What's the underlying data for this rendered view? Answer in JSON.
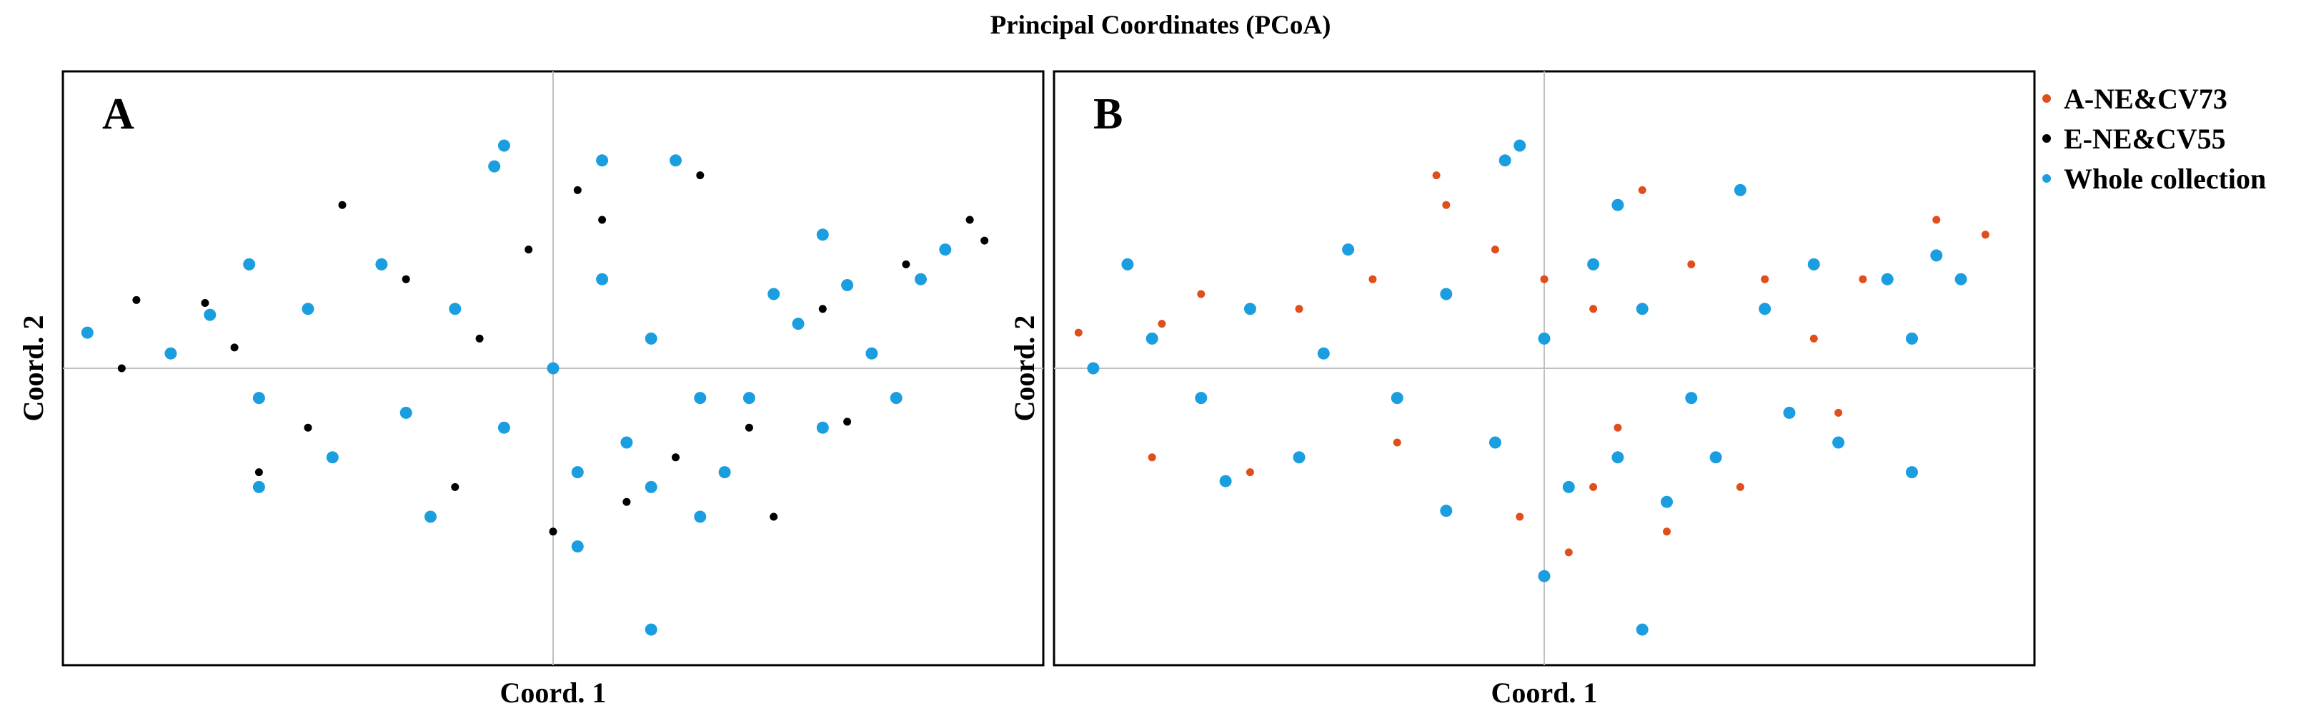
{
  "title": "Principal Coordinates (PCoA)",
  "colors": {
    "whole": "#1a9ee0",
    "e_group": "#000000",
    "a_group": "#e04e1b",
    "axis": "#c0c0c0",
    "frame": "#000000"
  },
  "legend": {
    "position": "top-right",
    "entries": [
      {
        "label": "A-NE&CV73",
        "color": "#e04e1b"
      },
      {
        "label": "E-NE&CV55",
        "color": "#000000"
      },
      {
        "label": "Whole collection",
        "color": "#1a9ee0"
      }
    ]
  },
  "chart_data": [
    {
      "type": "scatter",
      "panel_label": "A",
      "xlabel": "Coord. 1",
      "ylabel": "Coord. 2",
      "xlim": [
        -1,
        1
      ],
      "ylim": [
        -1,
        1
      ],
      "grid": false,
      "zero_lines": true,
      "series": [
        {
          "name": "E-NE&CV55",
          "color": "#000000",
          "size": "small",
          "points": [
            [
              -0.71,
              0.22
            ],
            [
              -0.65,
              0.07
            ],
            [
              -0.85,
              0.23
            ],
            [
              -0.43,
              0.55
            ],
            [
              -0.3,
              0.3
            ],
            [
              -0.15,
              0.1
            ],
            [
              -0.05,
              0.4
            ],
            [
              0.05,
              0.6
            ],
            [
              0.1,
              0.5
            ],
            [
              0.25,
              -0.3
            ],
            [
              0.4,
              -0.2
            ],
            [
              0.55,
              0.2
            ],
            [
              -0.6,
              -0.35
            ],
            [
              -0.2,
              -0.4
            ],
            [
              0.0,
              -0.55
            ],
            [
              0.15,
              -0.45
            ],
            [
              0.85,
              0.5
            ],
            [
              0.88,
              0.43
            ],
            [
              0.72,
              0.35
            ],
            [
              -0.88,
              0.0
            ],
            [
              0.6,
              -0.18
            ],
            [
              -0.5,
              -0.2
            ],
            [
              0.3,
              0.65
            ],
            [
              0.45,
              -0.5
            ]
          ]
        },
        {
          "name": "Whole collection",
          "color": "#1a9ee0",
          "size": "large",
          "points": [
            [
              -0.78,
              0.05
            ],
            [
              -0.7,
              0.18
            ],
            [
              -0.5,
              0.2
            ],
            [
              -0.35,
              0.35
            ],
            [
              -0.2,
              0.2
            ],
            [
              0.0,
              0.0
            ],
            [
              0.1,
              0.3
            ],
            [
              0.2,
              0.1
            ],
            [
              0.3,
              -0.1
            ],
            [
              0.45,
              0.25
            ],
            [
              0.5,
              0.15
            ],
            [
              0.6,
              0.28
            ],
            [
              0.65,
              0.05
            ],
            [
              0.75,
              0.3
            ],
            [
              -0.6,
              -0.1
            ],
            [
              -0.45,
              -0.3
            ],
            [
              -0.3,
              -0.15
            ],
            [
              -0.1,
              -0.2
            ],
            [
              0.05,
              -0.35
            ],
            [
              0.15,
              -0.25
            ],
            [
              0.2,
              -0.4
            ],
            [
              0.35,
              -0.35
            ],
            [
              0.4,
              -0.1
            ],
            [
              0.55,
              -0.2
            ],
            [
              -0.6,
              -0.4
            ],
            [
              -0.25,
              -0.5
            ],
            [
              0.05,
              -0.6
            ],
            [
              0.1,
              0.7
            ],
            [
              0.25,
              0.7
            ],
            [
              -0.1,
              0.75
            ],
            [
              -0.12,
              0.68
            ],
            [
              0.3,
              -0.5
            ],
            [
              0.2,
              -0.88
            ],
            [
              -0.62,
              0.35
            ],
            [
              0.55,
              0.45
            ],
            [
              0.8,
              0.4
            ],
            [
              -0.95,
              0.12
            ],
            [
              0.7,
              -0.1
            ]
          ]
        }
      ]
    },
    {
      "type": "scatter",
      "panel_label": "B",
      "xlabel": "Coord. 1",
      "ylabel": "Coord. 2",
      "xlim": [
        -1,
        1
      ],
      "ylim": [
        -1,
        1
      ],
      "grid": false,
      "zero_lines": true,
      "series": [
        {
          "name": "A-NE&CV73",
          "color": "#e04e1b",
          "size": "small",
          "points": [
            [
              -0.95,
              0.12
            ],
            [
              -0.78,
              0.15
            ],
            [
              -0.7,
              0.25
            ],
            [
              -0.5,
              0.2
            ],
            [
              -0.35,
              0.3
            ],
            [
              -0.2,
              0.55
            ],
            [
              -0.1,
              0.4
            ],
            [
              0.0,
              0.3
            ],
            [
              0.1,
              0.2
            ],
            [
              0.2,
              0.6
            ],
            [
              0.3,
              0.35
            ],
            [
              0.45,
              0.3
            ],
            [
              0.55,
              0.1
            ],
            [
              0.8,
              0.5
            ],
            [
              0.9,
              0.45
            ],
            [
              -0.6,
              -0.35
            ],
            [
              -0.3,
              -0.25
            ],
            [
              -0.05,
              -0.5
            ],
            [
              0.1,
              -0.4
            ],
            [
              0.25,
              -0.55
            ],
            [
              0.4,
              -0.4
            ],
            [
              0.6,
              -0.15
            ],
            [
              -0.8,
              -0.3
            ],
            [
              0.05,
              -0.62
            ],
            [
              -0.22,
              0.65
            ],
            [
              0.65,
              0.3
            ],
            [
              0.15,
              -0.2
            ]
          ]
        },
        {
          "name": "Whole collection",
          "color": "#1a9ee0",
          "size": "large",
          "points": [
            [
              -0.92,
              0.0
            ],
            [
              -0.8,
              0.1
            ],
            [
              -0.6,
              0.2
            ],
            [
              -0.4,
              0.4
            ],
            [
              -0.2,
              0.25
            ],
            [
              0.0,
              0.1
            ],
            [
              0.1,
              0.35
            ],
            [
              0.2,
              0.2
            ],
            [
              0.3,
              -0.1
            ],
            [
              0.45,
              0.2
            ],
            [
              0.55,
              0.35
            ],
            [
              0.7,
              0.3
            ],
            [
              0.75,
              0.1
            ],
            [
              0.8,
              0.38
            ],
            [
              -0.7,
              -0.1
            ],
            [
              -0.5,
              -0.3
            ],
            [
              -0.3,
              -0.1
            ],
            [
              -0.1,
              -0.25
            ],
            [
              0.05,
              -0.4
            ],
            [
              0.15,
              -0.3
            ],
            [
              0.25,
              -0.45
            ],
            [
              0.35,
              -0.3
            ],
            [
              0.5,
              -0.15
            ],
            [
              0.6,
              -0.25
            ],
            [
              -0.65,
              -0.38
            ],
            [
              -0.2,
              -0.48
            ],
            [
              0.0,
              -0.7
            ],
            [
              -0.05,
              0.75
            ],
            [
              -0.08,
              0.7
            ],
            [
              0.15,
              0.55
            ],
            [
              0.4,
              0.6
            ],
            [
              0.2,
              -0.88
            ],
            [
              -0.85,
              0.35
            ],
            [
              0.85,
              0.3
            ],
            [
              0.75,
              -0.35
            ],
            [
              -0.45,
              0.05
            ]
          ]
        }
      ]
    }
  ]
}
